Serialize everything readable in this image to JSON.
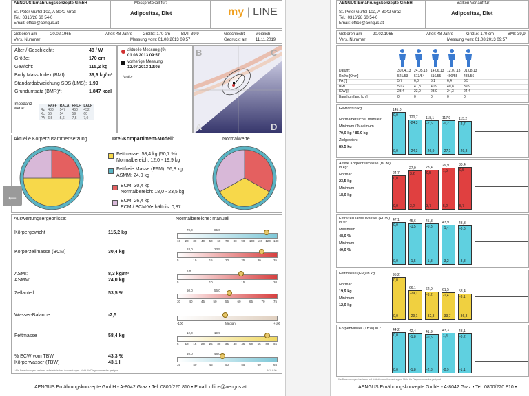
{
  "company": "AENGUS Ernährungskonzepte GmbH",
  "address1": "St. Peter Gürtel 10a, A-8042 Graz",
  "tel": "Tel.: 0316/28 60 54-0",
  "email": "Email: office@aengus.at",
  "left": {
    "protocol_label": "Messprotokoll für:",
    "patient": "Adipositas, Diet",
    "logo_a": "my",
    "logo_b": "LINE",
    "born_label": "Geboren am",
    "born": "20.02.1965",
    "age": "Alter: 48 Jahre",
    "height": "Größe: 170 cm",
    "bmi": "BMI: 39,9",
    "sex_label": "Geschlecht",
    "sex": "weiblich",
    "vers_label": "Vers. Nummer",
    "measure_date": "Messung vom: 01.08.2013 09:57",
    "printed_label": "Gedruckt am",
    "printed": "11.11.2019",
    "stats": [
      {
        "label": "Alter / Geschlecht:",
        "value": "48 / W"
      },
      {
        "label": "Größe:",
        "value": "170 cm"
      },
      {
        "label": "Gewicht:",
        "value": "115,2 kg"
      },
      {
        "label": "Body Mass Index (BMI):",
        "value": "39,9 kg/m²"
      },
      {
        "label": "Standardabweichung SDS (LMS):",
        "value": "1,99"
      },
      {
        "label": "Grundumsatz (BMR)*:",
        "value": "1.847 kcal"
      }
    ],
    "imp_label": "Impedanz-werte:",
    "imp_cols": [
      "RAFF",
      "RALA",
      "RFLF",
      "LALF"
    ],
    "imp_rows": [
      {
        "k": "Rz",
        "v": [
          "488",
          "547",
          "450",
          "452"
        ]
      },
      {
        "k": "Xc",
        "v": [
          "56",
          "54",
          "59",
          "60"
        ]
      },
      {
        "k": "PA",
        "v": [
          "6,5",
          "5,6",
          "7,5",
          "7,0"
        ]
      }
    ],
    "current_label": "aktuelle Messung (9)",
    "current_date": "01.08.2013 09:57",
    "prev_label": "vorherige Messung",
    "prev_date": "12.07.2013 12:06",
    "notiz": "Notiz:",
    "quad": {
      "b": "B",
      "c": "C",
      "a": "A",
      "d": "D"
    },
    "comp_title": "Aktuelle Körperzusammensetzung",
    "model_title": "Drei-Kompartiment-Modell:",
    "norm_title": "Normalwerte",
    "fat_line1": "Fettmasse: 58,4 kg (50,7 %)",
    "fat_line2": "Normalbereich: 12,0 - 19,9 kg",
    "ffm_line1": "Fettfreie Masse (FFM): 56,8 kg",
    "ffm_line2": "ASMM: 24,0 kg",
    "bcm_line1": "BCM: 30,4 kg",
    "bcm_line2": "Normalbereich: 18,0 - 23,5 kg",
    "ecm_line1": "ECM: 26,4 kg",
    "ecm_line2": "ECM / BCM-Verhältnis: 0,87",
    "results_title": "Auswertungsergebnisse:",
    "norm_mode": "Normalbereiche: manuell",
    "results": [
      {
        "label": "Körpergewicht",
        "value": "115,2 kg",
        "ticks": [
          "10",
          "20",
          "30",
          "40",
          "50",
          "60",
          "70",
          "80",
          "90",
          "100",
          "110",
          "120",
          "130"
        ],
        "ref": [
          "70,0",
          "85,0"
        ],
        "level": 0.89,
        "color": "#7fc8d8"
      },
      {
        "label": "Körperzellmasse (BCM)",
        "value": "30,4 kg",
        "ticks": [
          "5",
          "10",
          "15",
          "20",
          "25",
          "30",
          "35"
        ],
        "ref": [
          "18,0",
          "23,5"
        ],
        "level": 0.84,
        "color": "#d84040"
      },
      {
        "label": "ASMI:",
        "value": "8,3 kg/m²",
        "label2": "ASMM:",
        "value2": "24,0 kg",
        "ticks": [
          "5",
          "10",
          "15",
          "20"
        ],
        "ref": [
          "6,0"
        ],
        "level": 0.64,
        "color": "#d84040"
      },
      {
        "label": "Zellanteil",
        "value": "53,5 %",
        "ticks": [
          "30",
          "40",
          "45",
          "50",
          "55",
          "60",
          "65",
          "70",
          "75"
        ],
        "ref": [
          "50,0",
          "56,0"
        ],
        "level": 0.52,
        "color": "#d84040"
      },
      {
        "label": "Wasser-Balance:",
        "value": "-2,5",
        "ticks": [
          "-100",
          "Median",
          "+100"
        ],
        "ref": [],
        "level": 0.48,
        "color": "#e0d0c0"
      },
      {
        "label": "Fettmasse",
        "value": "58,4 kg",
        "ticks": [
          "5",
          "10",
          "15",
          "20",
          "25",
          "30",
          "35",
          "40",
          "45",
          "50",
          "55",
          "60",
          "65"
        ],
        "ref": [
          "12,0",
          "19,9"
        ],
        "level": 0.9,
        "color": "#f0d860"
      },
      {
        "label": "% ECW vom TBW",
        "value": "43,3 %",
        "label2": "Körperwasser (TBW)",
        "value2": "43,1 l",
        "ticks": [
          "35",
          "40",
          "45",
          "50",
          "55",
          "60",
          "65"
        ],
        "ref": [
          "40,0",
          "48,0"
        ],
        "level": 0.45,
        "color": "#7fc8d8"
      }
    ],
    "footnote": "* Alle Berechnungen basieren auf statistischen Auswertungen. Nicht für Diagnosezwecke geeignet.",
    "bcl": "BCL 4.90"
  },
  "right": {
    "course_label": "Balken Verlauf für:",
    "patient": "Adipositas, Diet",
    "dates": [
      "30.04.13",
      "24.05.13",
      "14.06.13",
      "12.07.13",
      "01.08.13"
    ],
    "table_rows": [
      {
        "k": "Datum:",
        "v": [
          "30.04.13",
          "24.05.13",
          "14.06.13",
          "12.07.13",
          "01.08.13"
        ]
      },
      {
        "k": "Rz/Xc [Ohm]",
        "v": [
          "521/53",
          "513/54",
          "516/55",
          "490/55",
          "488/56"
        ]
      },
      {
        "k": "PA [°]",
        "v": [
          "5,7",
          "6,0",
          "6,1",
          "6,4",
          "6,5"
        ]
      },
      {
        "k": "BMI",
        "v": [
          "50,2",
          "41,8",
          "40,9",
          "40,8",
          "39,9"
        ]
      },
      {
        "k": "ICW [l]",
        "v": [
          "23,4",
          "23,0",
          "23,0",
          "24,3",
          "24,4"
        ]
      },
      {
        "k": "Bauchumfang [cm]",
        "v": [
          "0",
          "0",
          "0",
          "0",
          "0"
        ]
      }
    ],
    "panels": [
      {
        "title": "Gewicht in kg:",
        "side": [
          "Normalbereiche: manuell:",
          "Minimum / Maximum",
          "70,0 kg / 85,0 kg",
          "Zielgewicht",
          "89,5 kg"
        ],
        "tops": [
          "145,0",
          "120,7",
          "118,1",
          "117,9",
          "115,2"
        ],
        "diffs": [
          "0,0",
          "-24,3",
          "-2,6",
          "-0,2",
          "-2,7"
        ],
        "bottoms": [
          "0,0",
          "-24,3",
          "-26,9",
          "-27,1",
          "-29,8"
        ],
        "levels": [
          1.0,
          0.83,
          0.81,
          0.81,
          0.79
        ],
        "color": "#5fd0e0"
      },
      {
        "title": "Aktive Körperzellmasse (BCM) in kg:",
        "side": [
          "Normal:",
          "23,5 kg",
          "Minimum",
          "18,0 kg"
        ],
        "tops": [
          "24,7",
          "27,9",
          "28,4",
          "29,9",
          "30,4"
        ],
        "diffs": [
          "0,0",
          "3,2",
          "0,5",
          "1,5",
          "0,5"
        ],
        "bottoms": [
          "0,0",
          "3,2",
          "3,7",
          "5,2",
          "5,7"
        ],
        "levels": [
          0.81,
          0.92,
          0.93,
          0.98,
          1.0
        ],
        "color": "#e04040"
      },
      {
        "title": "Extrazelluläres Wasser (ECW) in %:",
        "side": [
          "Maximum",
          "48,0 %",
          "Minimum",
          "40,0 %"
        ],
        "tops": [
          "47,1",
          "45,6",
          "45,3",
          "43,9",
          "43,3"
        ],
        "diffs": [
          "0,0",
          "-1,5",
          "-0,3",
          "-1,4",
          "-0,6"
        ],
        "bottoms": [
          "0,0",
          "-1,5",
          "-1,8",
          "-3,2",
          "-3,8"
        ],
        "levels": [
          1.0,
          0.97,
          0.96,
          0.93,
          0.92
        ],
        "color": "#5fd0e0"
      },
      {
        "title": "Fettmasse (FM) in kg:",
        "side": [
          "Normal:",
          "19,9 kg",
          "Minimum",
          "12,0 kg"
        ],
        "tops": [
          "95,2",
          "66,1",
          "62,9",
          "61,5",
          "58,4"
        ],
        "diffs": [
          "0,0",
          "-29,1",
          "-3,2",
          "-1,4",
          "-3,1"
        ],
        "bottoms": [
          "0,0",
          "-29,1",
          "-32,3",
          "-33,7",
          "-36,8"
        ],
        "levels": [
          1.0,
          0.69,
          0.66,
          0.65,
          0.61
        ],
        "color": "#f0d040"
      },
      {
        "title": "Körperwasser (TBW) in l:",
        "side": [],
        "tops": [
          "44,2",
          "42,4",
          "41,9",
          "43,3",
          "43,1"
        ],
        "diffs": [
          "0,0",
          "-1,8",
          "-0,5",
          "1,4",
          "-0,2"
        ],
        "bottoms": [
          "0,0",
          "-1,8",
          "-2,3",
          "-0,9",
          "-1,1"
        ],
        "levels": [
          1.0,
          0.96,
          0.95,
          0.98,
          0.97
        ],
        "color": "#5fd0e0"
      }
    ],
    "footnote": "Alle Berechnungen basieren auf statistischen Auswertungen. Nicht für Diagnosezwecke geeignet."
  },
  "footer_left": "AENGUS Ernährungskonzepte GmbH • A-8042 Graz • Tel: 0800/220 810 • Email: office@aengus.at",
  "footer_right": "AENGUS Ernährungskonzepte GmbH • A-8042 Graz • Tel: 0800/220 810 •",
  "colors": {
    "fat": "#f7d84a",
    "ffm": "#5ab4c4",
    "bcm": "#e46060",
    "ecm": "#d8b8d8",
    "purple": "#3a3a78"
  }
}
